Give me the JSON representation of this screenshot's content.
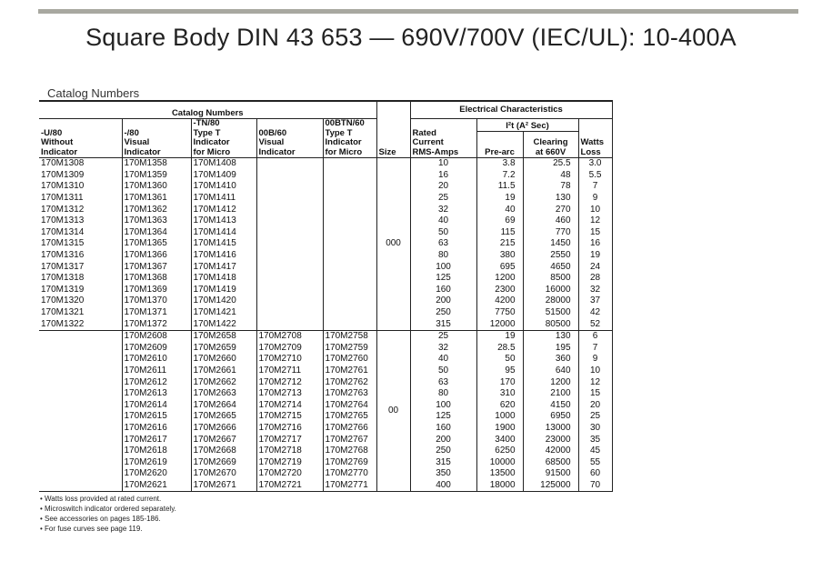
{
  "title": "Square Body DIN 43 653 — 690V/700V (IEC/UL):  10-400A",
  "subtitle": "Catalog Numbers",
  "header": {
    "catalog_numbers": "Catalog Numbers",
    "electrical": "Electrical Characteristics",
    "col1": [
      "-U/80",
      "Without",
      "Indicator"
    ],
    "col2": [
      "-/80",
      "Visual",
      "Indicator"
    ],
    "col3": [
      "-TN/80",
      "Type T",
      "Indicator",
      "for Micro"
    ],
    "col4": [
      "00B/60",
      "Visual",
      "Indicator"
    ],
    "col5": [
      "00BTN/60",
      "Type T",
      "Indicator",
      "for Micro"
    ],
    "size": "Size",
    "rated": [
      "Rated",
      "Current",
      "RMS-Amps"
    ],
    "i2t": "I²t (A² Sec)",
    "prearc": "Pre-arc",
    "clearing": [
      "Clearing",
      "at 660V"
    ],
    "watts": [
      "Watts",
      "Loss"
    ]
  },
  "groups": [
    {
      "size": "000",
      "rows": [
        [
          "170M1308",
          "170M1358",
          "170M1408",
          "",
          "",
          "10",
          "3.8",
          "25.5",
          "3.0"
        ],
        [
          "170M1309",
          "170M1359",
          "170M1409",
          "",
          "",
          "16",
          "7.2",
          "48",
          "5.5"
        ],
        [
          "170M1310",
          "170M1360",
          "170M1410",
          "",
          "",
          "20",
          "11.5",
          "78",
          "7"
        ],
        [
          "170M1311",
          "170M1361",
          "170M1411",
          "",
          "",
          "25",
          "19",
          "130",
          "9"
        ],
        [
          "170M1312",
          "170M1362",
          "170M1412",
          "",
          "",
          "32",
          "40",
          "270",
          "10"
        ],
        [
          "170M1313",
          "170M1363",
          "170M1413",
          "",
          "",
          "40",
          "69",
          "460",
          "12"
        ],
        [
          "170M1314",
          "170M1364",
          "170M1414",
          "",
          "",
          "50",
          "115",
          "770",
          "15"
        ],
        [
          "170M1315",
          "170M1365",
          "170M1415",
          "",
          "",
          "63",
          "215",
          "1450",
          "16"
        ],
        [
          "170M1316",
          "170M1366",
          "170M1416",
          "",
          "",
          "80",
          "380",
          "2550",
          "19"
        ],
        [
          "170M1317",
          "170M1367",
          "170M1417",
          "",
          "",
          "100",
          "695",
          "4650",
          "24"
        ],
        [
          "170M1318",
          "170M1368",
          "170M1418",
          "",
          "",
          "125",
          "1200",
          "8500",
          "28"
        ],
        [
          "170M1319",
          "170M1369",
          "170M1419",
          "",
          "",
          "160",
          "2300",
          "16000",
          "32"
        ],
        [
          "170M1320",
          "170M1370",
          "170M1420",
          "",
          "",
          "200",
          "4200",
          "28000",
          "37"
        ],
        [
          "170M1321",
          "170M1371",
          "170M1421",
          "",
          "",
          "250",
          "7750",
          "51500",
          "42"
        ],
        [
          "170M1322",
          "170M1372",
          "170M1422",
          "",
          "",
          "315",
          "12000",
          "80500",
          "52"
        ]
      ]
    },
    {
      "size": "00",
      "rows": [
        [
          "",
          "170M2608",
          "170M2658",
          "170M2708",
          "170M2758",
          "25",
          "19",
          "130",
          "6"
        ],
        [
          "",
          "170M2609",
          "170M2659",
          "170M2709",
          "170M2759",
          "32",
          "28.5",
          "195",
          "7"
        ],
        [
          "",
          "170M2610",
          "170M2660",
          "170M2710",
          "170M2760",
          "40",
          "50",
          "360",
          "9"
        ],
        [
          "",
          "170M2611",
          "170M2661",
          "170M2711",
          "170M2761",
          "50",
          "95",
          "640",
          "10"
        ],
        [
          "",
          "170M2612",
          "170M2662",
          "170M2712",
          "170M2762",
          "63",
          "170",
          "1200",
          "12"
        ],
        [
          "",
          "170M2613",
          "170M2663",
          "170M2713",
          "170M2763",
          "80",
          "310",
          "2100",
          "15"
        ],
        [
          "",
          "170M2614",
          "170M2664",
          "170M2714",
          "170M2764",
          "100",
          "620",
          "4150",
          "20"
        ],
        [
          "",
          "170M2615",
          "170M2665",
          "170M2715",
          "170M2765",
          "125",
          "1000",
          "6950",
          "25"
        ],
        [
          "",
          "170M2616",
          "170M2666",
          "170M2716",
          "170M2766",
          "160",
          "1900",
          "13000",
          "30"
        ],
        [
          "",
          "170M2617",
          "170M2667",
          "170M2717",
          "170M2767",
          "200",
          "3400",
          "23000",
          "35"
        ],
        [
          "",
          "170M2618",
          "170M2668",
          "170M2718",
          "170M2768",
          "250",
          "6250",
          "42000",
          "45"
        ],
        [
          "",
          "170M2619",
          "170M2669",
          "170M2719",
          "170M2769",
          "315",
          "10000",
          "68500",
          "55"
        ],
        [
          "",
          "170M2620",
          "170M2670",
          "170M2720",
          "170M2770",
          "350",
          "13500",
          "91500",
          "60"
        ],
        [
          "",
          "170M2621",
          "170M2671",
          "170M2721",
          "170M2771",
          "400",
          "18000",
          "125000",
          "70"
        ]
      ]
    }
  ],
  "notes": [
    "• Watts loss provided at rated current.",
    "• Microswitch indicator ordered separately.",
    "• See accessories on pages 185-186.",
    "• For fuse curves see page 119."
  ]
}
